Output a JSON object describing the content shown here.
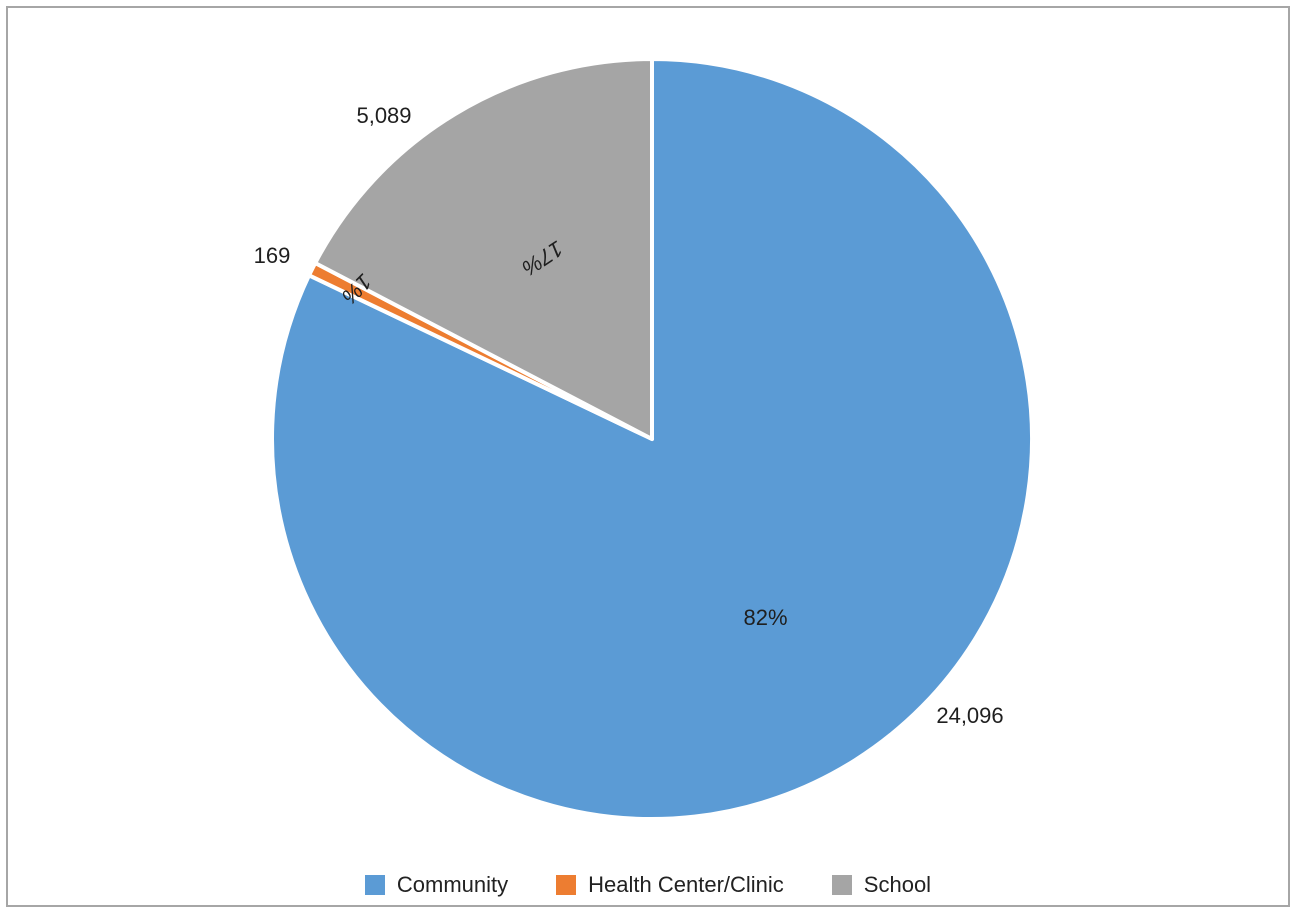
{
  "chart_data": {
    "type": "pie",
    "slices": [
      {
        "name": "Community",
        "value": 24096,
        "value_label": "24,096",
        "pct_label": "82%",
        "color": "#5b9bd5"
      },
      {
        "name": "Health Center/Clinic",
        "value": 169,
        "value_label": "169",
        "pct_label": "1%",
        "color": "#ed7d31"
      },
      {
        "name": "School",
        "value": 5089,
        "value_label": "5,089",
        "pct_label": "17%",
        "color": "#a5a5a5"
      }
    ],
    "start_direction": "top",
    "direction": "clockwise",
    "legend_position": "bottom"
  }
}
